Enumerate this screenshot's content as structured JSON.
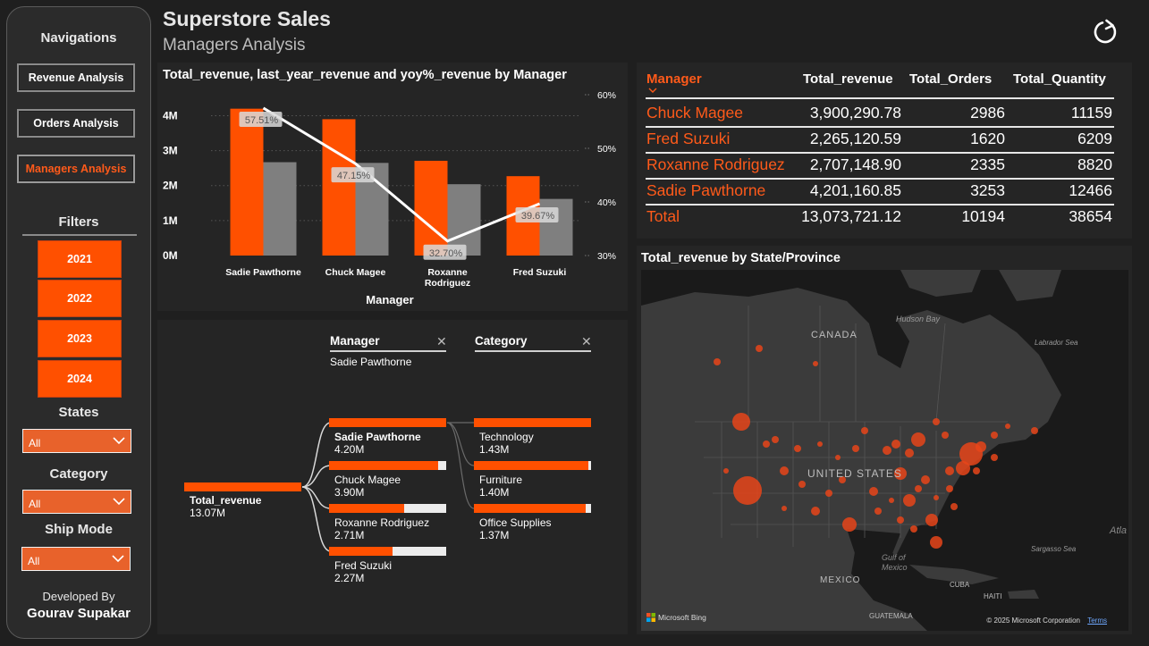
{
  "app": {
    "title": "Superstore Sales",
    "subtitle": "Managers Analysis"
  },
  "sidebar": {
    "nav_title": "Navigations",
    "nav_items": [
      {
        "label": "Revenue Analysis",
        "active": false
      },
      {
        "label": "Orders Analysis",
        "active": false
      },
      {
        "label": "Managers Analysis",
        "active": true
      }
    ],
    "filters_title": "Filters",
    "years": [
      "2021",
      "2022",
      "2023",
      "2024"
    ],
    "states": {
      "label": "States",
      "value": "All"
    },
    "category": {
      "label": "Category",
      "value": "All"
    },
    "ship_mode": {
      "label": "Ship Mode",
      "value": "All"
    },
    "developed_by": "Developed By",
    "developer": "Gourav Supakar"
  },
  "chart": {
    "title": "Total_revenue, last_year_revenue and yoy%_revenue by Manager",
    "xlabel": "Manager",
    "y_left_ticks": [
      "0M",
      "1M",
      "2M",
      "3M",
      "4M"
    ],
    "y_right_ticks": [
      "30%",
      "40%",
      "50%",
      "60%"
    ],
    "category_labels": [
      "Sadie Pawthorne",
      "Chuck Magee",
      "Roxanne\nRodriguez",
      "Fred Suzuki"
    ],
    "yoy_labels": [
      "57.51%",
      "47.15%",
      "32.70%",
      "39.67%"
    ]
  },
  "chart_data": {
    "type": "bar",
    "categories": [
      "Sadie Pawthorne",
      "Chuck Magee",
      "Roxanne Rodriguez",
      "Fred Suzuki"
    ],
    "series": [
      {
        "values": [
          4.2,
          3.9,
          2.71,
          2.27
        ],
        "color": "#ff5000"
      },
      {
        "values": [
          2.67,
          2.65,
          2.04,
          1.62
        ],
        "color": "#7f7f7f"
      },
      {
        "values": [
          57.51,
          47.15,
          32.7,
          39.67
        ],
        "color": "#ffffff"
      }
    ],
    "xlabel": "Manager",
    "ylim": [
      0,
      4.6
    ],
    "y2lim": [
      30,
      60
    ]
  },
  "table": {
    "headers": [
      "Manager",
      "Total_revenue",
      "Total_Orders",
      "Total_Quantity"
    ],
    "rows": [
      [
        "Chuck Magee",
        "3,900,290.78",
        "2986",
        "11159"
      ],
      [
        "Fred Suzuki",
        "2,265,120.59",
        "1620",
        "6209"
      ],
      [
        "Roxanne Rodriguez",
        "2,707,148.90",
        "2335",
        "8820"
      ],
      [
        "Sadie Pawthorne",
        "4,201,160.85",
        "3253",
        "12466"
      ]
    ],
    "total": [
      "Total",
      "13,073,721.12",
      "10194",
      "38654"
    ]
  },
  "decomp": {
    "root": {
      "label": "Total_revenue",
      "value": "13.07M"
    },
    "level1_header": "Manager",
    "level1_selected": "Sadie Pawthorne",
    "level2_header": "Category",
    "managers": [
      {
        "label": "Sadie Pawthorne",
        "value": "4.20M",
        "fraction": 1.0,
        "selected": true
      },
      {
        "label": "Chuck Magee",
        "value": "3.90M",
        "fraction": 0.929
      },
      {
        "label": "Roxanne Rodriguez",
        "value": "2.71M",
        "fraction": 0.645
      },
      {
        "label": "Fred Suzuki",
        "value": "2.27M",
        "fraction": 0.54
      }
    ],
    "categories": [
      {
        "label": "Technology",
        "value": "1.43M",
        "fraction": 1.0
      },
      {
        "label": "Furniture",
        "value": "1.40M",
        "fraction": 0.979
      },
      {
        "label": "Office Supplies",
        "value": "1.37M",
        "fraction": 0.958
      }
    ]
  },
  "map": {
    "title": "Total_revenue by State/Province",
    "labels": {
      "canada": "CANADA",
      "hudson": "Hudson Bay",
      "labrador": "Labrador Sea",
      "us": "UNITED STATES",
      "gulf": "Gulf of\nMexico",
      "mexico": "MEXICO",
      "sargasso": "Sargasso Sea",
      "cuba": "CUBA",
      "haiti": "HAITI",
      "guatemala": "GUATEMALA",
      "atlantic": "Atla"
    },
    "attribution": "© 2025 Microsoft Corporation",
    "terms": "Terms",
    "bing": "Microsoft Bing"
  }
}
